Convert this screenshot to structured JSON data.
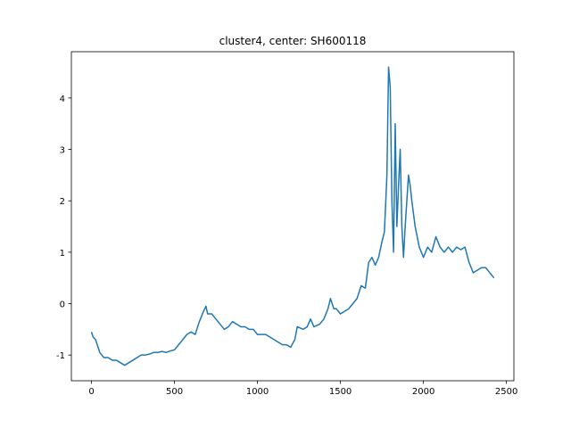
{
  "chart_data": {
    "type": "line",
    "title": "cluster4, center: SH600118",
    "x": [
      0,
      10,
      25,
      50,
      75,
      100,
      125,
      150,
      175,
      200,
      225,
      250,
      275,
      300,
      325,
      350,
      375,
      400,
      425,
      450,
      475,
      500,
      525,
      550,
      575,
      600,
      625,
      650,
      675,
      690,
      700,
      725,
      750,
      775,
      800,
      825,
      850,
      875,
      900,
      925,
      950,
      975,
      1000,
      1025,
      1050,
      1075,
      1100,
      1125,
      1150,
      1175,
      1200,
      1225,
      1240,
      1275,
      1300,
      1320,
      1340,
      1375,
      1400,
      1425,
      1440,
      1460,
      1475,
      1500,
      1525,
      1550,
      1575,
      1600,
      1625,
      1650,
      1670,
      1690,
      1710,
      1730,
      1750,
      1765,
      1780,
      1790,
      1800,
      1810,
      1820,
      1830,
      1840,
      1850,
      1860,
      1870,
      1880,
      1890,
      1900,
      1910,
      1920,
      1930,
      1950,
      1975,
      2000,
      2025,
      2050,
      2075,
      2100,
      2125,
      2150,
      2175,
      2200,
      2225,
      2250,
      2275,
      2300,
      2325,
      2350,
      2375,
      2400,
      2425
    ],
    "series": [
      {
        "color": "#1f77b4",
        "values": [
          -0.55,
          -0.65,
          -0.7,
          -0.95,
          -1.05,
          -1.05,
          -1.1,
          -1.1,
          -1.15,
          -1.2,
          -1.15,
          -1.1,
          -1.05,
          -1.0,
          -1.0,
          -0.98,
          -0.95,
          -0.95,
          -0.93,
          -0.95,
          -0.92,
          -0.9,
          -0.8,
          -0.7,
          -0.6,
          -0.55,
          -0.6,
          -0.35,
          -0.15,
          -0.05,
          -0.2,
          -0.2,
          -0.3,
          -0.4,
          -0.5,
          -0.45,
          -0.35,
          -0.4,
          -0.45,
          -0.45,
          -0.5,
          -0.5,
          -0.6,
          -0.6,
          -0.6,
          -0.65,
          -0.7,
          -0.75,
          -0.8,
          -0.8,
          -0.85,
          -0.7,
          -0.45,
          -0.5,
          -0.45,
          -0.3,
          -0.45,
          -0.4,
          -0.3,
          -0.1,
          0.1,
          -0.1,
          -0.1,
          -0.2,
          -0.15,
          -0.1,
          0.0,
          0.1,
          0.35,
          0.3,
          0.8,
          0.9,
          0.75,
          0.9,
          1.2,
          1.4,
          2.5,
          4.6,
          4.2,
          2.0,
          1.0,
          3.5,
          1.5,
          2.3,
          3.0,
          1.5,
          0.9,
          1.5,
          2.0,
          2.5,
          2.3,
          2.0,
          1.5,
          1.1,
          0.9,
          1.1,
          1.0,
          1.3,
          1.1,
          1.0,
          1.1,
          1.0,
          1.1,
          1.05,
          1.1,
          0.8,
          0.6,
          0.65,
          0.7,
          0.7,
          0.6,
          0.5
        ]
      }
    ],
    "xlim": [
      -121,
      2545
    ],
    "ylim": [
      -1.5,
      4.9
    ],
    "xticks": [
      0,
      500,
      1000,
      1500,
      2000,
      2500
    ],
    "yticks": [
      -1,
      0,
      1,
      2,
      3,
      4
    ]
  }
}
